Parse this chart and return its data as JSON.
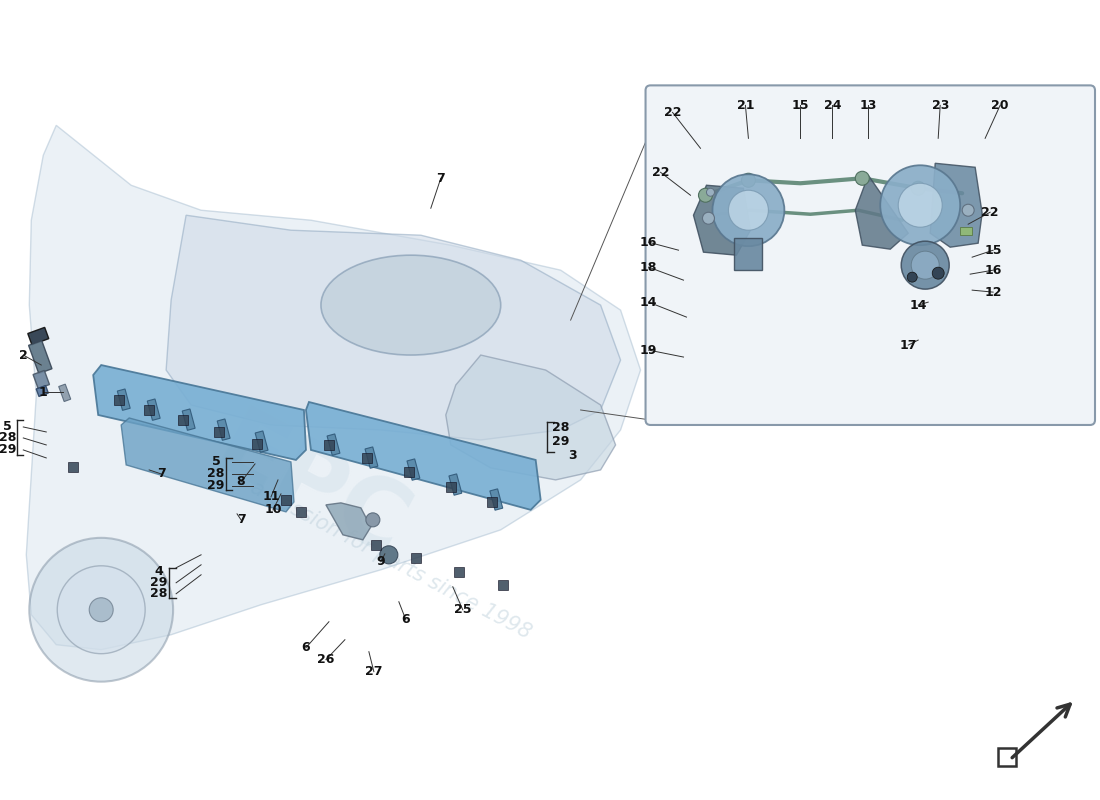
{
  "bg_color": "#ffffff",
  "engine_facecolor": "#d4e0ec",
  "engine_edgecolor": "#a0b8cc",
  "rail_color": "#7ab0d4",
  "rail_edge": "#4a7898",
  "injector_color": "#5888a8",
  "coil_color": "#607888",
  "cap_color": "#334455",
  "inset_bg": "#f0f4f8",
  "inset_border": "#8899aa",
  "pipe_color": "#6a9080",
  "label_color": "#111111",
  "arrow_color": "#333333",
  "bracket_color": "#222222"
}
